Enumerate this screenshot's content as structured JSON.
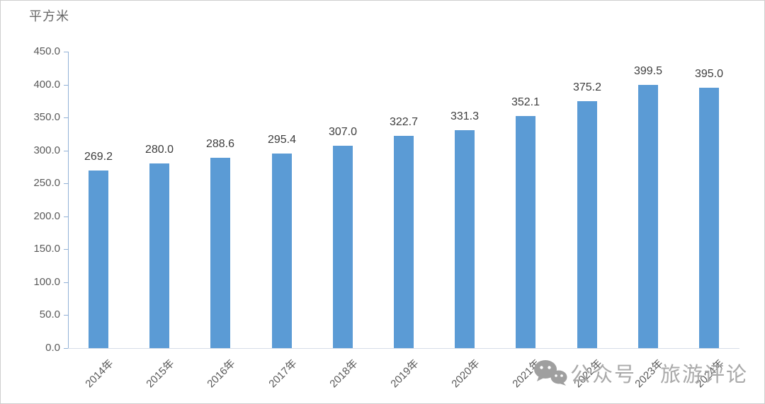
{
  "axis_title": "平方米",
  "watermark": {
    "icon": "wechat-icon",
    "text_1": "公众号",
    "text_2": "旅游评论"
  },
  "colors": {
    "bar": "#5b9bd5",
    "y_axis_line": "#92b1d6",
    "x_axis_line": "#d7dee8",
    "tick_label": "#595959",
    "data_label": "#3d3d3d",
    "watermark": "#a9a9a9"
  },
  "chart_data": {
    "type": "bar",
    "title": "",
    "ylabel": "平方米",
    "xlabel": "",
    "categories": [
      "2014年",
      "2015年",
      "2016年",
      "2017年",
      "2018年",
      "2019年",
      "2020年",
      "2021年",
      "2022年",
      "2023年",
      "2024年"
    ],
    "values": [
      269.2,
      280.0,
      288.6,
      295.4,
      307.0,
      322.7,
      331.3,
      352.1,
      375.2,
      399.5,
      395.0
    ],
    "data_labels": [
      "269.2",
      "280.0",
      "288.6",
      "295.4",
      "307.0",
      "322.7",
      "331.3",
      "352.1",
      "375.2",
      "399.5",
      "395.0"
    ],
    "ylim": [
      0,
      450
    ],
    "ytick_step": 50,
    "ytick_decimals": 1,
    "grid": false,
    "legend_position": "none",
    "x_label_rotation_deg": 45
  }
}
